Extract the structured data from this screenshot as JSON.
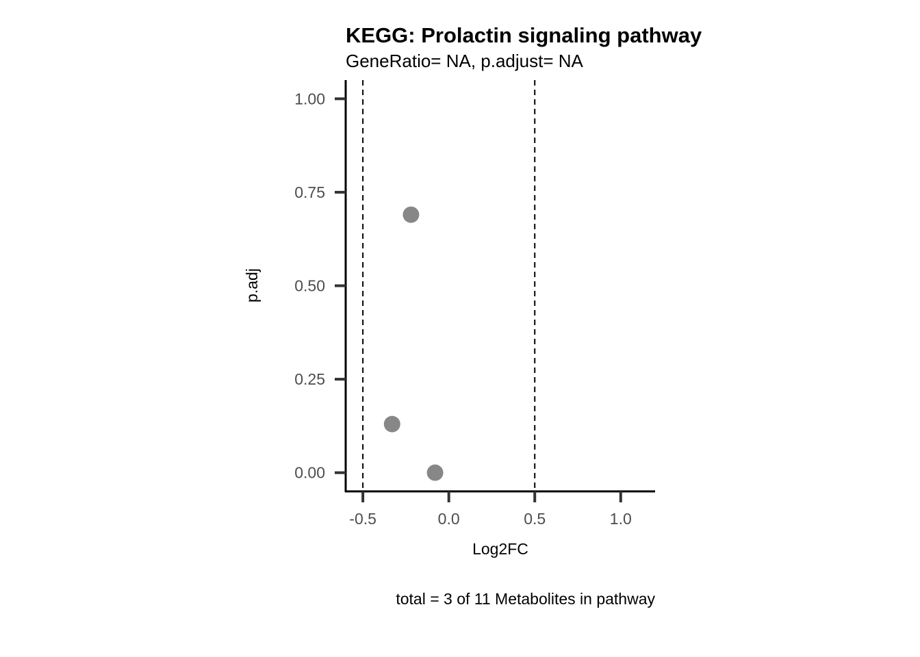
{
  "chart_data": {
    "type": "scatter",
    "title": "KEGG: Prolactin signaling pathway",
    "subtitle": "GeneRatio= NA, p.adjust= NA",
    "xlabel": "Log2FC",
    "ylabel": "p.adj",
    "caption": "total = 3 of 11 Metabolites in pathway",
    "xlim": [
      -0.6,
      1.2
    ],
    "ylim": [
      -0.05,
      1.05
    ],
    "x_ticks": [
      -0.5,
      0.0,
      0.5,
      1.0
    ],
    "x_tick_labels": [
      "-0.5",
      "0.0",
      "0.5",
      "1.0"
    ],
    "y_ticks": [
      0.0,
      0.25,
      0.5,
      0.75,
      1.0
    ],
    "y_tick_labels": [
      "0.00",
      "0.25",
      "0.50",
      "0.75",
      "1.00"
    ],
    "vlines": [
      -0.5,
      0.5
    ],
    "grid": false,
    "point_color": "#878787",
    "points": [
      {
        "x": -0.22,
        "y": 0.69
      },
      {
        "x": -0.33,
        "y": 0.13
      },
      {
        "x": -0.08,
        "y": 0.0
      }
    ]
  }
}
